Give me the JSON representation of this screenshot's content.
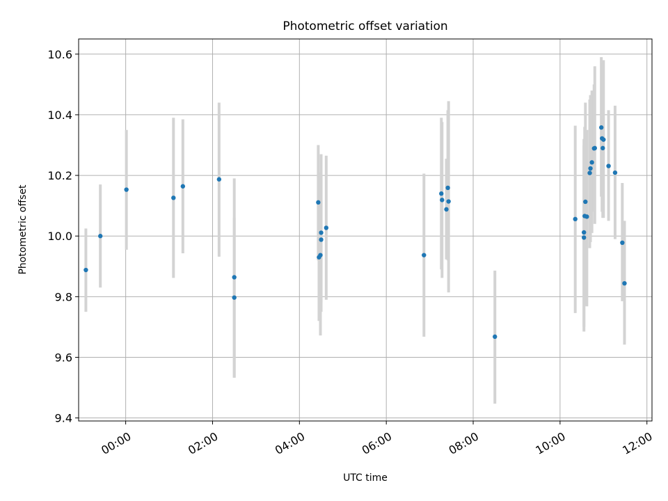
{
  "chart_data": {
    "type": "scatter",
    "title": "Photometric offset variation",
    "xlabel": "UTC time",
    "ylabel": "Photometric offset",
    "x_type": "time",
    "xlim": [
      "22:55",
      "12:07"
    ],
    "ylim": [
      9.39,
      10.65
    ],
    "x_ticks": [
      "00:00",
      "02:00",
      "04:00",
      "06:00",
      "08:00",
      "10:00",
      "12:00"
    ],
    "y_ticks": [
      "9.4",
      "9.6",
      "9.8",
      "10.0",
      "10.2",
      "10.4",
      "10.6"
    ],
    "grid": true,
    "series": [
      {
        "marker_color": "#1f77b4",
        "errorbar_color": "#d3d3d3",
        "points": [
          {
            "x": "23:05",
            "y": 9.888,
            "ylo": 9.75,
            "yhi": 10.025
          },
          {
            "x": "23:25",
            "y": 10.0,
            "ylo": 9.83,
            "yhi": 10.17
          },
          {
            "x": "00:01",
            "y": 10.153,
            "ylo": 9.955,
            "yhi": 10.35
          },
          {
            "x": "01:06",
            "y": 10.126,
            "ylo": 9.862,
            "yhi": 10.39
          },
          {
            "x": "01:19",
            "y": 10.164,
            "ylo": 9.943,
            "yhi": 10.385
          },
          {
            "x": "02:09",
            "y": 10.187,
            "ylo": 9.932,
            "yhi": 10.44
          },
          {
            "x": "02:30",
            "y": 9.864,
            "ylo": 9.533,
            "yhi": 10.19
          },
          {
            "x": "02:30",
            "y": 9.797,
            "ylo": 9.533,
            "yhi": 10.06
          },
          {
            "x": "04:26",
            "y": 10.111,
            "ylo": 9.92,
            "yhi": 10.3
          },
          {
            "x": "04:27",
            "y": 9.93,
            "ylo": 9.72,
            "yhi": 10.14
          },
          {
            "x": "04:29",
            "y": 9.937,
            "ylo": 9.672,
            "yhi": 10.21
          },
          {
            "x": "04:30",
            "y": 10.011,
            "ylo": 9.75,
            "yhi": 10.27
          },
          {
            "x": "04:30",
            "y": 9.988,
            "ylo": 9.78,
            "yhi": 10.2
          },
          {
            "x": "04:37",
            "y": 10.027,
            "ylo": 9.79,
            "yhi": 10.265
          },
          {
            "x": "06:52",
            "y": 9.937,
            "ylo": 9.668,
            "yhi": 10.206
          },
          {
            "x": "07:16",
            "y": 10.14,
            "ylo": 9.89,
            "yhi": 10.39
          },
          {
            "x": "07:17",
            "y": 10.119,
            "ylo": 9.862,
            "yhi": 10.376
          },
          {
            "x": "07:23",
            "y": 10.088,
            "ylo": 9.923,
            "yhi": 10.255
          },
          {
            "x": "07:25",
            "y": 10.159,
            "ylo": 9.92,
            "yhi": 10.415
          },
          {
            "x": "07:26",
            "y": 10.114,
            "ylo": 9.814,
            "yhi": 10.445
          },
          {
            "x": "08:30",
            "y": 9.668,
            "ylo": 9.447,
            "yhi": 9.886
          },
          {
            "x": "10:21",
            "y": 10.056,
            "ylo": 9.746,
            "yhi": 10.364
          },
          {
            "x": "10:33",
            "y": 10.012,
            "ylo": 9.7,
            "yhi": 10.32
          },
          {
            "x": "10:33",
            "y": 9.995,
            "ylo": 9.685,
            "yhi": 10.3
          },
          {
            "x": "10:34",
            "y": 10.066,
            "ylo": 9.77,
            "yhi": 10.36
          },
          {
            "x": "10:35",
            "y": 10.113,
            "ylo": 9.78,
            "yhi": 10.44
          },
          {
            "x": "10:37",
            "y": 10.064,
            "ylo": 9.768,
            "yhi": 10.35
          },
          {
            "x": "10:41",
            "y": 10.208,
            "ylo": 9.96,
            "yhi": 10.45
          },
          {
            "x": "10:42",
            "y": 10.223,
            "ylo": 9.98,
            "yhi": 10.465
          },
          {
            "x": "10:44",
            "y": 10.243,
            "ylo": 10.01,
            "yhi": 10.48
          },
          {
            "x": "10:47",
            "y": 10.289,
            "ylo": 10.08,
            "yhi": 10.5
          },
          {
            "x": "10:48",
            "y": 10.29,
            "ylo": 10.04,
            "yhi": 10.56
          },
          {
            "x": "10:57",
            "y": 10.358,
            "ylo": 10.13,
            "yhi": 10.59
          },
          {
            "x": "10:58",
            "y": 10.322,
            "ylo": 10.08,
            "yhi": 10.57
          },
          {
            "x": "10:59",
            "y": 10.29,
            "ylo": 10.06,
            "yhi": 10.5
          },
          {
            "x": "11:00",
            "y": 10.318,
            "ylo": 10.06,
            "yhi": 10.58
          },
          {
            "x": "11:07",
            "y": 10.231,
            "ylo": 10.05,
            "yhi": 10.415
          },
          {
            "x": "11:16",
            "y": 10.209,
            "ylo": 9.99,
            "yhi": 10.43
          },
          {
            "x": "11:26",
            "y": 9.978,
            "ylo": 9.785,
            "yhi": 10.175
          },
          {
            "x": "11:29",
            "y": 9.844,
            "ylo": 9.642,
            "yhi": 10.05
          }
        ]
      }
    ]
  }
}
